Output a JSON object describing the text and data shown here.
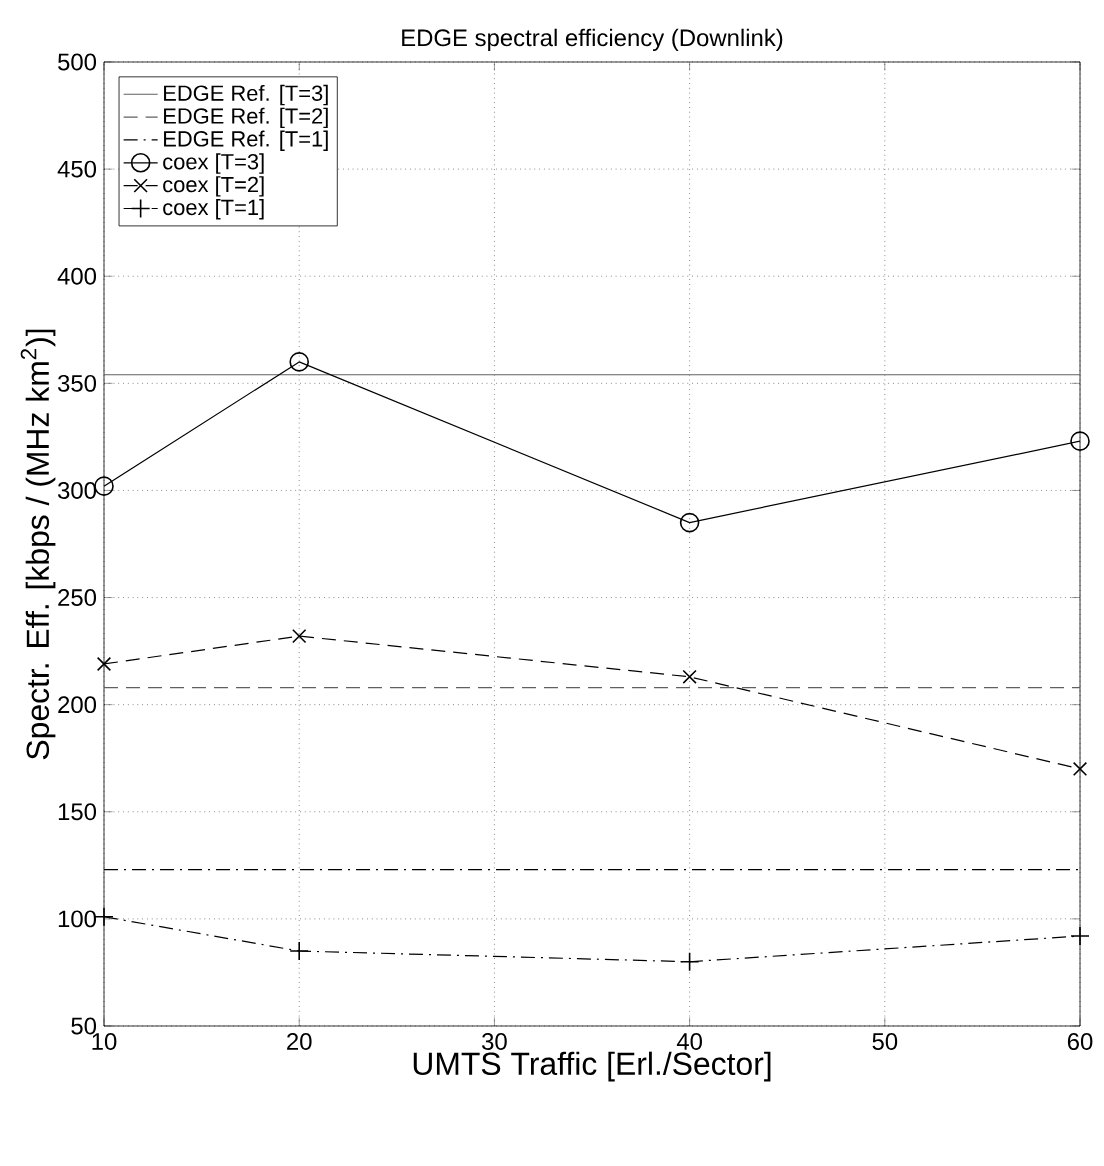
{
  "chart_data": {
    "type": "line",
    "title": "EDGE spectral efficiency (Downlink)",
    "xlabel": "UMTS Traffic [Erl./Sector]",
    "ylabel": "Spectr. Eff. [kbps / (MHz km$^{2}$)]",
    "xlim": [
      10,
      60
    ],
    "xticks": [
      10,
      20,
      30,
      40,
      50,
      60
    ],
    "ylim": [
      50,
      500
    ],
    "yticks": [
      50,
      100,
      150,
      200,
      250,
      300,
      350,
      400,
      450,
      500
    ],
    "grid": true,
    "legend": "top left",
    "series": [
      {
        "name": "EDGE Ref. [T=3]",
        "color": "#606060",
        "x": [
          10,
          60
        ],
        "values": [
          354,
          354
        ],
        "marker": "none",
        "line_style": "solid"
      },
      {
        "name": "EDGE Ref. [T=2]",
        "color": "#606060",
        "x": [
          10,
          60
        ],
        "values": [
          208,
          208
        ],
        "marker": "none",
        "line_style": "dashed"
      },
      {
        "name": "EDGE Ref. [T=1]",
        "color": "#000000",
        "x": [
          10,
          60
        ],
        "values": [
          123,
          123
        ],
        "marker": "none",
        "line_style": "dashdot"
      },
      {
        "name": "coex [T=3]",
        "color": "#000000",
        "x": [
          10,
          20,
          40,
          60
        ],
        "values": [
          302,
          360,
          285,
          323
        ],
        "marker": "circle",
        "line_style": "solid"
      },
      {
        "name": "coex [T=2]",
        "color": "#000000",
        "x": [
          10,
          20,
          40,
          60
        ],
        "values": [
          219,
          232,
          213,
          170
        ],
        "marker": "x",
        "line_style": "dashed"
      },
      {
        "name": "coex [T=1]",
        "color": "#000000",
        "x": [
          10,
          20,
          40,
          60
        ],
        "values": [
          101,
          85,
          80,
          92
        ],
        "marker": "cross",
        "line_style": "dashdot"
      }
    ]
  }
}
